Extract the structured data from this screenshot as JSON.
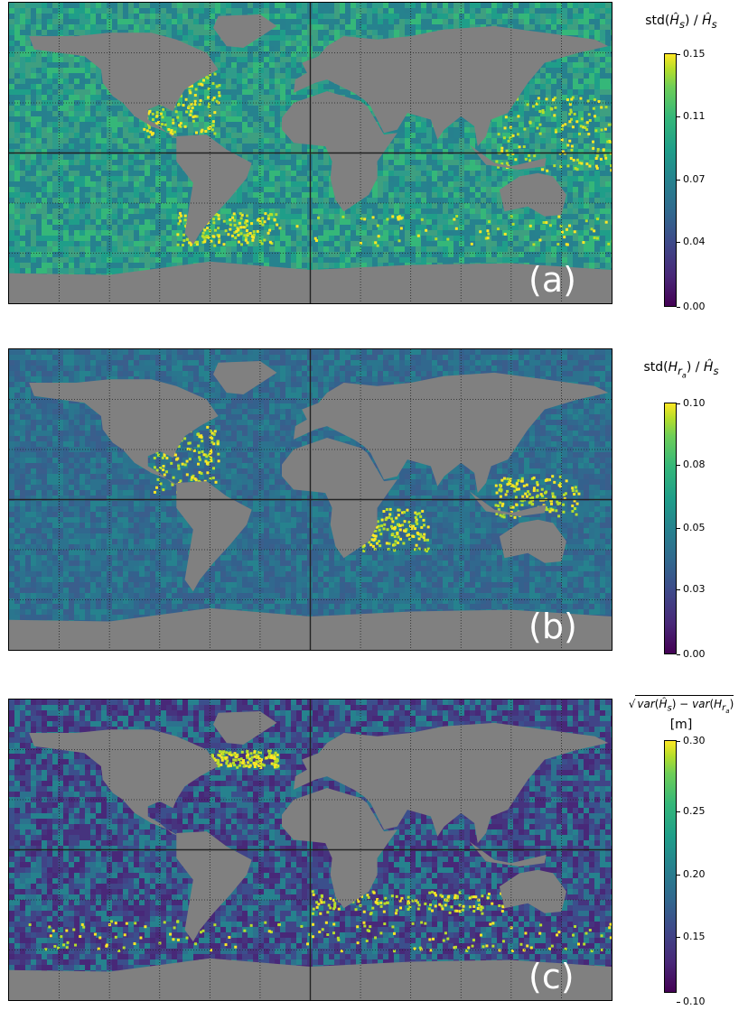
{
  "chart_data": [
    {
      "type": "heatmap",
      "panel_label": "(a)",
      "title_parts": {
        "pre": "std(",
        "sym": "Ĥ",
        "sub": "s",
        "mid": ") / ",
        "sym2": "Ĥ",
        "sub2": "s",
        "post": ""
      },
      "colormap": "viridis",
      "clim": [
        0.0,
        0.15
      ],
      "colorbar_ticks": [
        "0.00",
        "0.04",
        "0.07",
        "0.11",
        "0.15"
      ],
      "grid": true
    },
    {
      "type": "heatmap",
      "panel_label": "(b)",
      "title_parts": {
        "pre": "std(",
        "sym": "H",
        "sub": "r",
        "subsub": "a",
        "mid": ") / ",
        "sym2": "Ĥ",
        "sub2": "s",
        "post": ""
      },
      "colormap": "viridis",
      "clim": [
        0.0,
        0.1
      ],
      "colorbar_ticks": [
        "0.00",
        "0.03",
        "0.05",
        "0.08",
        "0.10"
      ],
      "grid": true
    },
    {
      "type": "heatmap",
      "panel_label": "(c)",
      "title_line1": "var(Ĥs) − var(Hra)",
      "title_line2": "[m]",
      "colormap": "viridis",
      "clim": [
        0.1,
        0.3
      ],
      "colorbar_ticks": [
        "0.10",
        "0.15",
        "0.20",
        "0.25",
        "0.30"
      ],
      "grid": true
    }
  ],
  "colors": {
    "land": "#808080",
    "ocean_a": "#2f9c8a",
    "ocean_b": "#35608d",
    "ocean_c": "#3b4f8c",
    "highlight": "#fde725"
  }
}
